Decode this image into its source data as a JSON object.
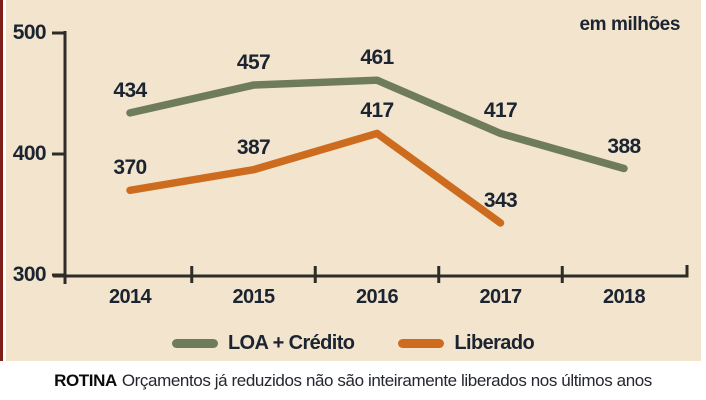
{
  "panel": {
    "bg_color": "#f2e4cd",
    "edge_strip_color": "#7e1f1a"
  },
  "chart_data": {
    "type": "line",
    "unit": "em milhões",
    "categories": [
      "2014",
      "2015",
      "2016",
      "2017",
      "2018"
    ],
    "series": [
      {
        "name": "LOA + Crédito",
        "color": "#6e7c5c",
        "values": [
          434,
          457,
          461,
          417,
          388
        ]
      },
      {
        "name": "Liberado",
        "color": "#cd6c1e",
        "values": [
          370,
          387,
          417,
          343,
          null
        ]
      }
    ],
    "yticks": [
      500,
      400,
      300
    ],
    "ylim": [
      300,
      500
    ],
    "grid": false,
    "legend_position": "bottom",
    "axis_color": "#2e2c27",
    "label_color": "#1b2430"
  },
  "caption": {
    "lead": "ROTINA",
    "text": "Orçamentos já reduzidos não são inteiramente liberados nos últimos anos"
  }
}
